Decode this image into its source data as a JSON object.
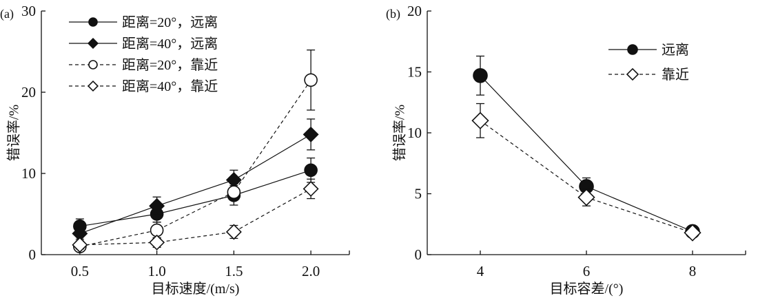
{
  "chart_data": [
    {
      "type": "line",
      "panel_label": "(a)",
      "xlabel": "目标速度/(m/s)",
      "ylabel": "错误率/%",
      "x": [
        0.5,
        1.0,
        1.5,
        2.0
      ],
      "xtick_labels": [
        "0.5",
        "1.0",
        "1.5",
        "2.0"
      ],
      "xlim": [
        0.25,
        2.25
      ],
      "ylim": [
        0,
        30
      ],
      "yticks": [
        0,
        10,
        20,
        30
      ],
      "legend_position": "top-left",
      "series": [
        {
          "name": "距离=20°，远离",
          "marker": "filled-circle",
          "line": "solid",
          "values": [
            3.5,
            5.0,
            7.3,
            10.4
          ],
          "errors": [
            0.9,
            1.0,
            1.2,
            1.5
          ]
        },
        {
          "name": "距离=40°，远离",
          "marker": "filled-diamond",
          "line": "solid",
          "values": [
            2.6,
            6.0,
            9.2,
            14.8
          ],
          "errors": [
            0.7,
            1.1,
            1.2,
            1.9
          ]
        },
        {
          "name": "距离=20°，靠近",
          "marker": "open-circle",
          "line": "dashed",
          "values": [
            1.0,
            3.0,
            7.7,
            21.5
          ],
          "errors": [
            0.5,
            1.0,
            1.0,
            3.7
          ]
        },
        {
          "name": "距离=40°，靠近",
          "marker": "open-diamond",
          "line": "dashed",
          "values": [
            1.2,
            1.5,
            2.8,
            8.1
          ],
          "errors": [
            0.5,
            0.6,
            0.8,
            1.2
          ]
        }
      ]
    },
    {
      "type": "line",
      "panel_label": "(b)",
      "xlabel": "目标容差/(°)",
      "ylabel": "错误率/%",
      "x": [
        4,
        6,
        8
      ],
      "xtick_labels": [
        "4",
        "6",
        "8"
      ],
      "xlim": [
        3,
        9
      ],
      "ylim": [
        0,
        20
      ],
      "yticks": [
        0,
        5,
        10,
        15,
        20
      ],
      "legend_position": "top-right",
      "series": [
        {
          "name": "远离",
          "marker": "filled-circle",
          "line": "solid",
          "values": [
            14.7,
            5.6,
            1.9
          ],
          "errors": [
            1.6,
            0.7,
            0.3
          ]
        },
        {
          "name": "靠近",
          "marker": "open-diamond",
          "line": "dashed",
          "values": [
            11.0,
            4.7,
            1.8
          ],
          "errors": [
            1.4,
            0.7,
            0.3
          ]
        }
      ]
    }
  ]
}
